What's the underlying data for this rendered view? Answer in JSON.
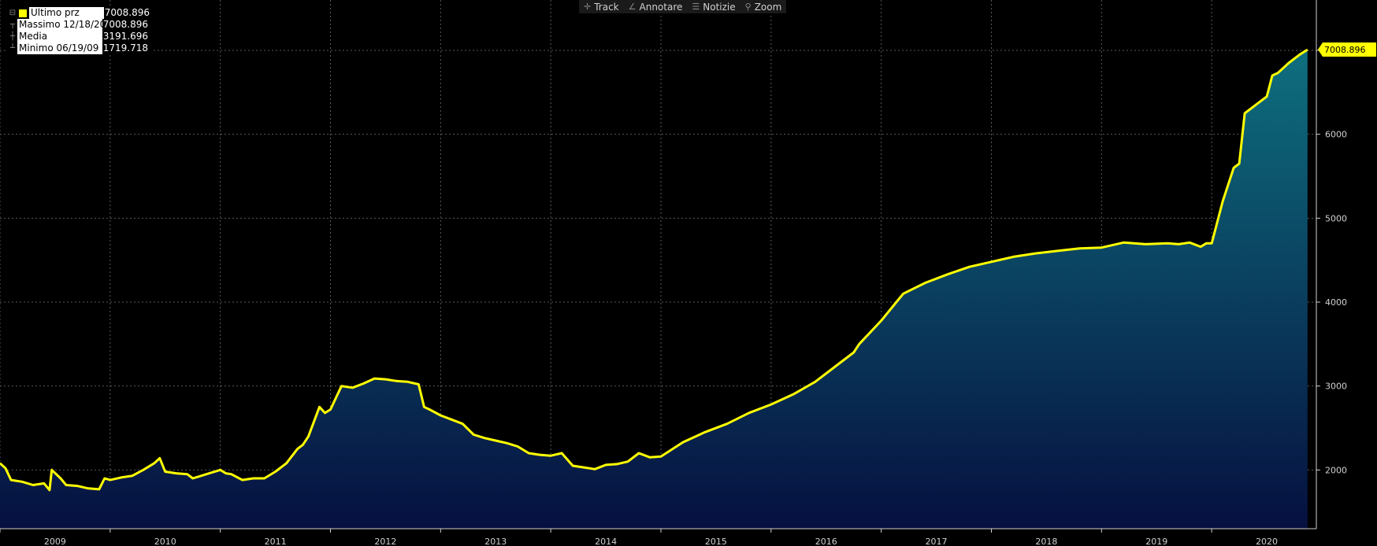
{
  "toolbar": {
    "track": {
      "icon": "crosshair-icon",
      "label": "Track"
    },
    "annotate": {
      "icon": "pencil-icon",
      "label": "Annotare"
    },
    "news": {
      "icon": "news-icon",
      "label": "Notizie"
    },
    "zoom": {
      "icon": "magnifier-icon",
      "label": "Zoom"
    }
  },
  "legend": {
    "last": {
      "label": "Ultimo prz",
      "value": "7008.896"
    },
    "high": {
      "label": "Massimo 12/18/20",
      "value": "7008.896"
    },
    "avg": {
      "label": "Media",
      "value": "3191.696"
    },
    "low": {
      "label": "Minimo 06/19/09",
      "value": "1719.718"
    }
  },
  "colors": {
    "line": "#ffff00",
    "area_top": "#0e6f7e",
    "area_bottom": "#061040",
    "grid": "#5a5a5a"
  },
  "chart_data": {
    "type": "area",
    "last_value_label": "7008.896",
    "ylim": [
      1300,
      7600
    ],
    "yticks": [
      2000,
      3000,
      4000,
      5000,
      6000,
      7000
    ],
    "ytick_labels": [
      "2000",
      "3000",
      "4000",
      "5000",
      "6000",
      ""
    ],
    "xlim": [
      2009.0,
      2020.95
    ],
    "x_years": [
      2009,
      2010,
      2011,
      2012,
      2013,
      2014,
      2015,
      2016,
      2017,
      2018,
      2019,
      2020
    ],
    "grid": true,
    "series": [
      {
        "x": [
          2009.0,
          2009.05,
          2009.1,
          2009.2,
          2009.3,
          2009.4,
          2009.45,
          2009.47,
          2009.55,
          2009.6,
          2009.7,
          2009.8,
          2009.9,
          2009.95,
          2010.0,
          2010.1,
          2010.2,
          2010.3,
          2010.4,
          2010.45,
          2010.5,
          2010.6,
          2010.7,
          2010.75,
          2010.8,
          2010.9,
          2011.0,
          2011.05,
          2011.1,
          2011.2,
          2011.3,
          2011.4,
          2011.5,
          2011.6,
          2011.7,
          2011.75,
          2011.8,
          2011.9,
          2011.95,
          2012.0,
          2012.1,
          2012.2,
          2012.3,
          2012.4,
          2012.5,
          2012.6,
          2012.7,
          2012.8,
          2012.85,
          2012.9,
          2013.0,
          2013.1,
          2013.2,
          2013.3,
          2013.4,
          2013.5,
          2013.6,
          2013.7,
          2013.8,
          2013.9,
          2014.0,
          2014.1,
          2014.2,
          2014.3,
          2014.4,
          2014.5,
          2014.6,
          2014.7,
          2014.8,
          2014.9,
          2015.0,
          2015.2,
          2015.4,
          2015.6,
          2015.8,
          2016.0,
          2016.2,
          2016.4,
          2016.6,
          2016.75,
          2016.8,
          2017.0,
          2017.2,
          2017.4,
          2017.6,
          2017.8,
          2018.0,
          2018.2,
          2018.4,
          2018.6,
          2018.8,
          2019.0,
          2019.2,
          2019.4,
          2019.6,
          2019.7,
          2019.8,
          2019.9,
          2019.95,
          2020.0,
          2020.1,
          2020.2,
          2020.25,
          2020.3,
          2020.4,
          2020.5,
          2020.55,
          2020.6,
          2020.7,
          2020.8,
          2020.87
        ],
        "y": [
          2080,
          2020,
          1880,
          1860,
          1820,
          1840,
          1760,
          2000,
          1900,
          1820,
          1810,
          1780,
          1770,
          1900,
          1880,
          1910,
          1930,
          2000,
          2080,
          2140,
          1980,
          1960,
          1950,
          1900,
          1920,
          1960,
          2000,
          1960,
          1950,
          1880,
          1900,
          1900,
          1980,
          2080,
          2250,
          2300,
          2400,
          2750,
          2680,
          2720,
          3000,
          2980,
          3030,
          3090,
          3080,
          3060,
          3050,
          3020,
          2750,
          2720,
          2650,
          2600,
          2550,
          2420,
          2380,
          2350,
          2320,
          2280,
          2200,
          2180,
          2170,
          2200,
          2050,
          2030,
          2010,
          2060,
          2070,
          2100,
          2200,
          2150,
          2160,
          2330,
          2450,
          2550,
          2680,
          2780,
          2900,
          3050,
          3250,
          3400,
          3500,
          3780,
          4100,
          4230,
          4330,
          4420,
          4480,
          4540,
          4580,
          4610,
          4640,
          4650,
          4710,
          4690,
          4700,
          4690,
          4710,
          4660,
          4700,
          4700,
          5200,
          5600,
          5650,
          6250,
          6350,
          6450,
          6700,
          6730,
          6850,
          6950,
          7008.896
        ]
      }
    ]
  }
}
